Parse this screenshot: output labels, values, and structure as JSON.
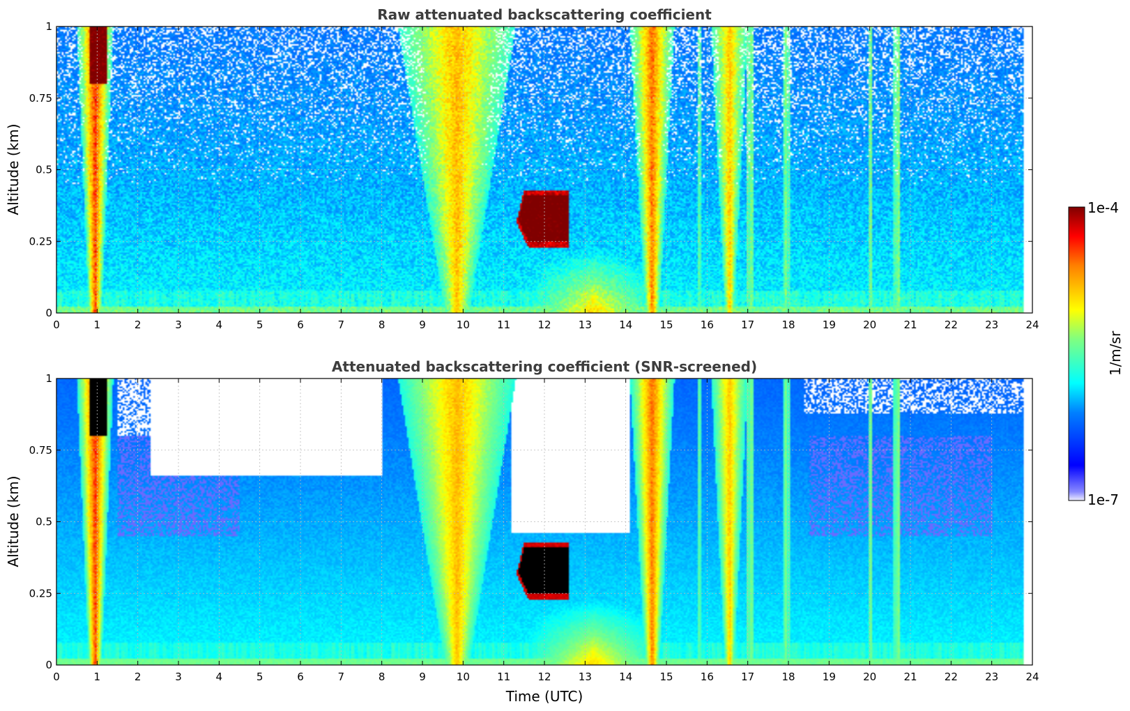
{
  "chart_data": [
    {
      "type": "heatmap",
      "title": "Raw attenuated backscattering coefficient",
      "xlabel": "",
      "ylabel": "Altitude (km)",
      "xlim": [
        0,
        24
      ],
      "ylim": [
        0,
        1
      ],
      "xticks": [
        "0",
        "1",
        "2",
        "3",
        "4",
        "5",
        "6",
        "7",
        "8",
        "9",
        "10",
        "11",
        "12",
        "13",
        "14",
        "15",
        "16",
        "17",
        "18",
        "19",
        "20",
        "21",
        "22",
        "23",
        "24"
      ],
      "yticks": [
        "0",
        "0.25",
        "0.5",
        "0.75",
        "1"
      ],
      "grid": true,
      "screened": false,
      "features": [
        {
          "name": "precipitation",
          "t_start": 0.45,
          "t_end": 1.35,
          "peak_t": 0.95,
          "value_log10": -4.3
        },
        {
          "name": "precipitation",
          "t_start": 8.6,
          "t_end": 11.3,
          "peak_t": 9.8,
          "value_log10": -4.6
        },
        {
          "name": "cloud",
          "t_start": 11.3,
          "t_end": 12.6,
          "alt_bottom": 0.23,
          "alt_top": 0.43,
          "value_log10": -3.9
        },
        {
          "name": "precipitation",
          "t_start": 14.1,
          "t_end": 15.2,
          "peak_t": 14.6,
          "value_log10": -4.5
        },
        {
          "name": "precipitation",
          "t_start": 16.1,
          "t_end": 17.2,
          "peak_t": 16.5,
          "value_log10": -4.7
        }
      ]
    },
    {
      "type": "heatmap",
      "title": "Attenuated backscattering coefficient (SNR-screened)",
      "xlabel": "Time (UTC)",
      "ylabel": "Altitude (km)",
      "xlim": [
        0,
        24
      ],
      "ylim": [
        0,
        1
      ],
      "xticks": [
        "0",
        "1",
        "2",
        "3",
        "4",
        "5",
        "6",
        "7",
        "8",
        "9",
        "10",
        "11",
        "12",
        "13",
        "14",
        "15",
        "16",
        "17",
        "18",
        "19",
        "20",
        "21",
        "22",
        "23",
        "24"
      ],
      "yticks": [
        "0",
        "0.25",
        "0.5",
        "0.75",
        "1"
      ],
      "grid": true,
      "screened": true,
      "features": [
        {
          "name": "precipitation",
          "t_start": 0.45,
          "t_end": 1.35,
          "peak_t": 0.95,
          "value_log10": -4.3
        },
        {
          "name": "precipitation",
          "t_start": 8.0,
          "t_end": 11.3,
          "peak_t": 9.8,
          "value_log10": -4.6
        },
        {
          "name": "cloud",
          "t_start": 11.3,
          "t_end": 12.6,
          "alt_bottom": 0.23,
          "alt_top": 0.43,
          "value_log10": -3.9
        },
        {
          "name": "precipitation",
          "t_start": 14.1,
          "t_end": 15.2,
          "peak_t": 14.6,
          "value_log10": -4.5
        },
        {
          "name": "precipitation",
          "t_start": 16.1,
          "t_end": 17.2,
          "peak_t": 16.5,
          "value_log10": -4.7
        }
      ]
    }
  ],
  "colorbar": {
    "label": "1/m/sr",
    "min_label": "1e-7",
    "max_label": "1e-4",
    "scale": "log",
    "min": 1e-07,
    "max": 0.0001,
    "colormap": "jet"
  }
}
